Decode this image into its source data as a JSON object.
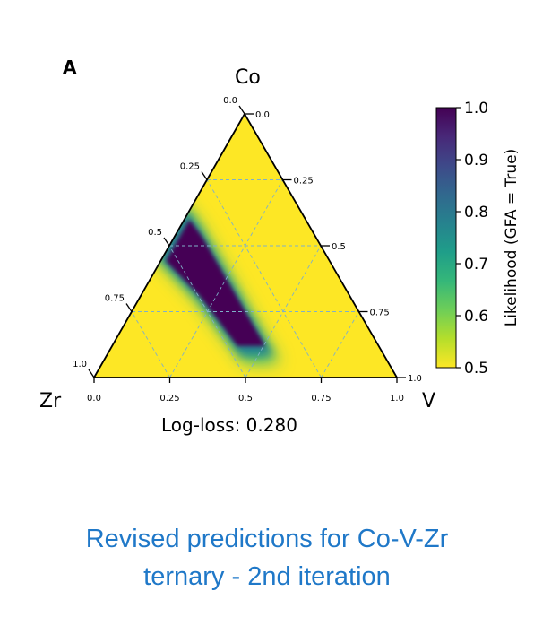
{
  "panel_label": "A",
  "caption": {
    "line1": "Revised predictions for Co-V-Zr",
    "line2": "ternary - 2nd iteration"
  },
  "chart_data": {
    "type": "heatmap",
    "subtype": "ternary",
    "corners": {
      "top": "Co",
      "left": "Zr",
      "right": "V"
    },
    "axis_ticks": {
      "Zr": [
        "0.0",
        "0.25",
        "0.5",
        "0.75",
        "1.0"
      ],
      "Co": [
        "0.0",
        "0.25",
        "0.5",
        "0.75",
        "1.0"
      ],
      "V": [
        "0.0",
        "0.25",
        "0.5",
        "0.75",
        "1.0"
      ]
    },
    "annotation": "Log-loss: 0.280",
    "colorbar": {
      "label": "Likelihood (GFA = True)",
      "range": [
        0.5,
        1.0
      ],
      "ticks": [
        "0.5",
        "0.6",
        "0.7",
        "0.8",
        "0.9",
        "1.0"
      ],
      "colormap": "viridis",
      "colors": [
        "#fde725",
        "#b5de2b",
        "#6ece58",
        "#35b779",
        "#1f9e89",
        "#26828e",
        "#31688e",
        "#3e4989",
        "#482878",
        "#440154"
      ]
    },
    "high_likelihood_region": {
      "description_units": "composition fractions (Co, V, Zr)",
      "path": [
        {
          "Co": 0.62,
          "V": 0.0,
          "Zr": 0.38
        },
        {
          "Co": 0.55,
          "V": 0.08,
          "Zr": 0.37
        },
        {
          "Co": 0.35,
          "V": 0.28,
          "Zr": 0.37
        },
        {
          "Co": 0.1,
          "V": 0.53,
          "Zr": 0.37
        },
        {
          "Co": 0.1,
          "V": 0.43,
          "Zr": 0.47
        },
        {
          "Co": 0.3,
          "V": 0.2,
          "Zr": 0.5
        },
        {
          "Co": 0.45,
          "V": 0.0,
          "Zr": 0.55
        }
      ],
      "peak_value": 1.0,
      "background_value": 0.5
    },
    "grid": true
  }
}
